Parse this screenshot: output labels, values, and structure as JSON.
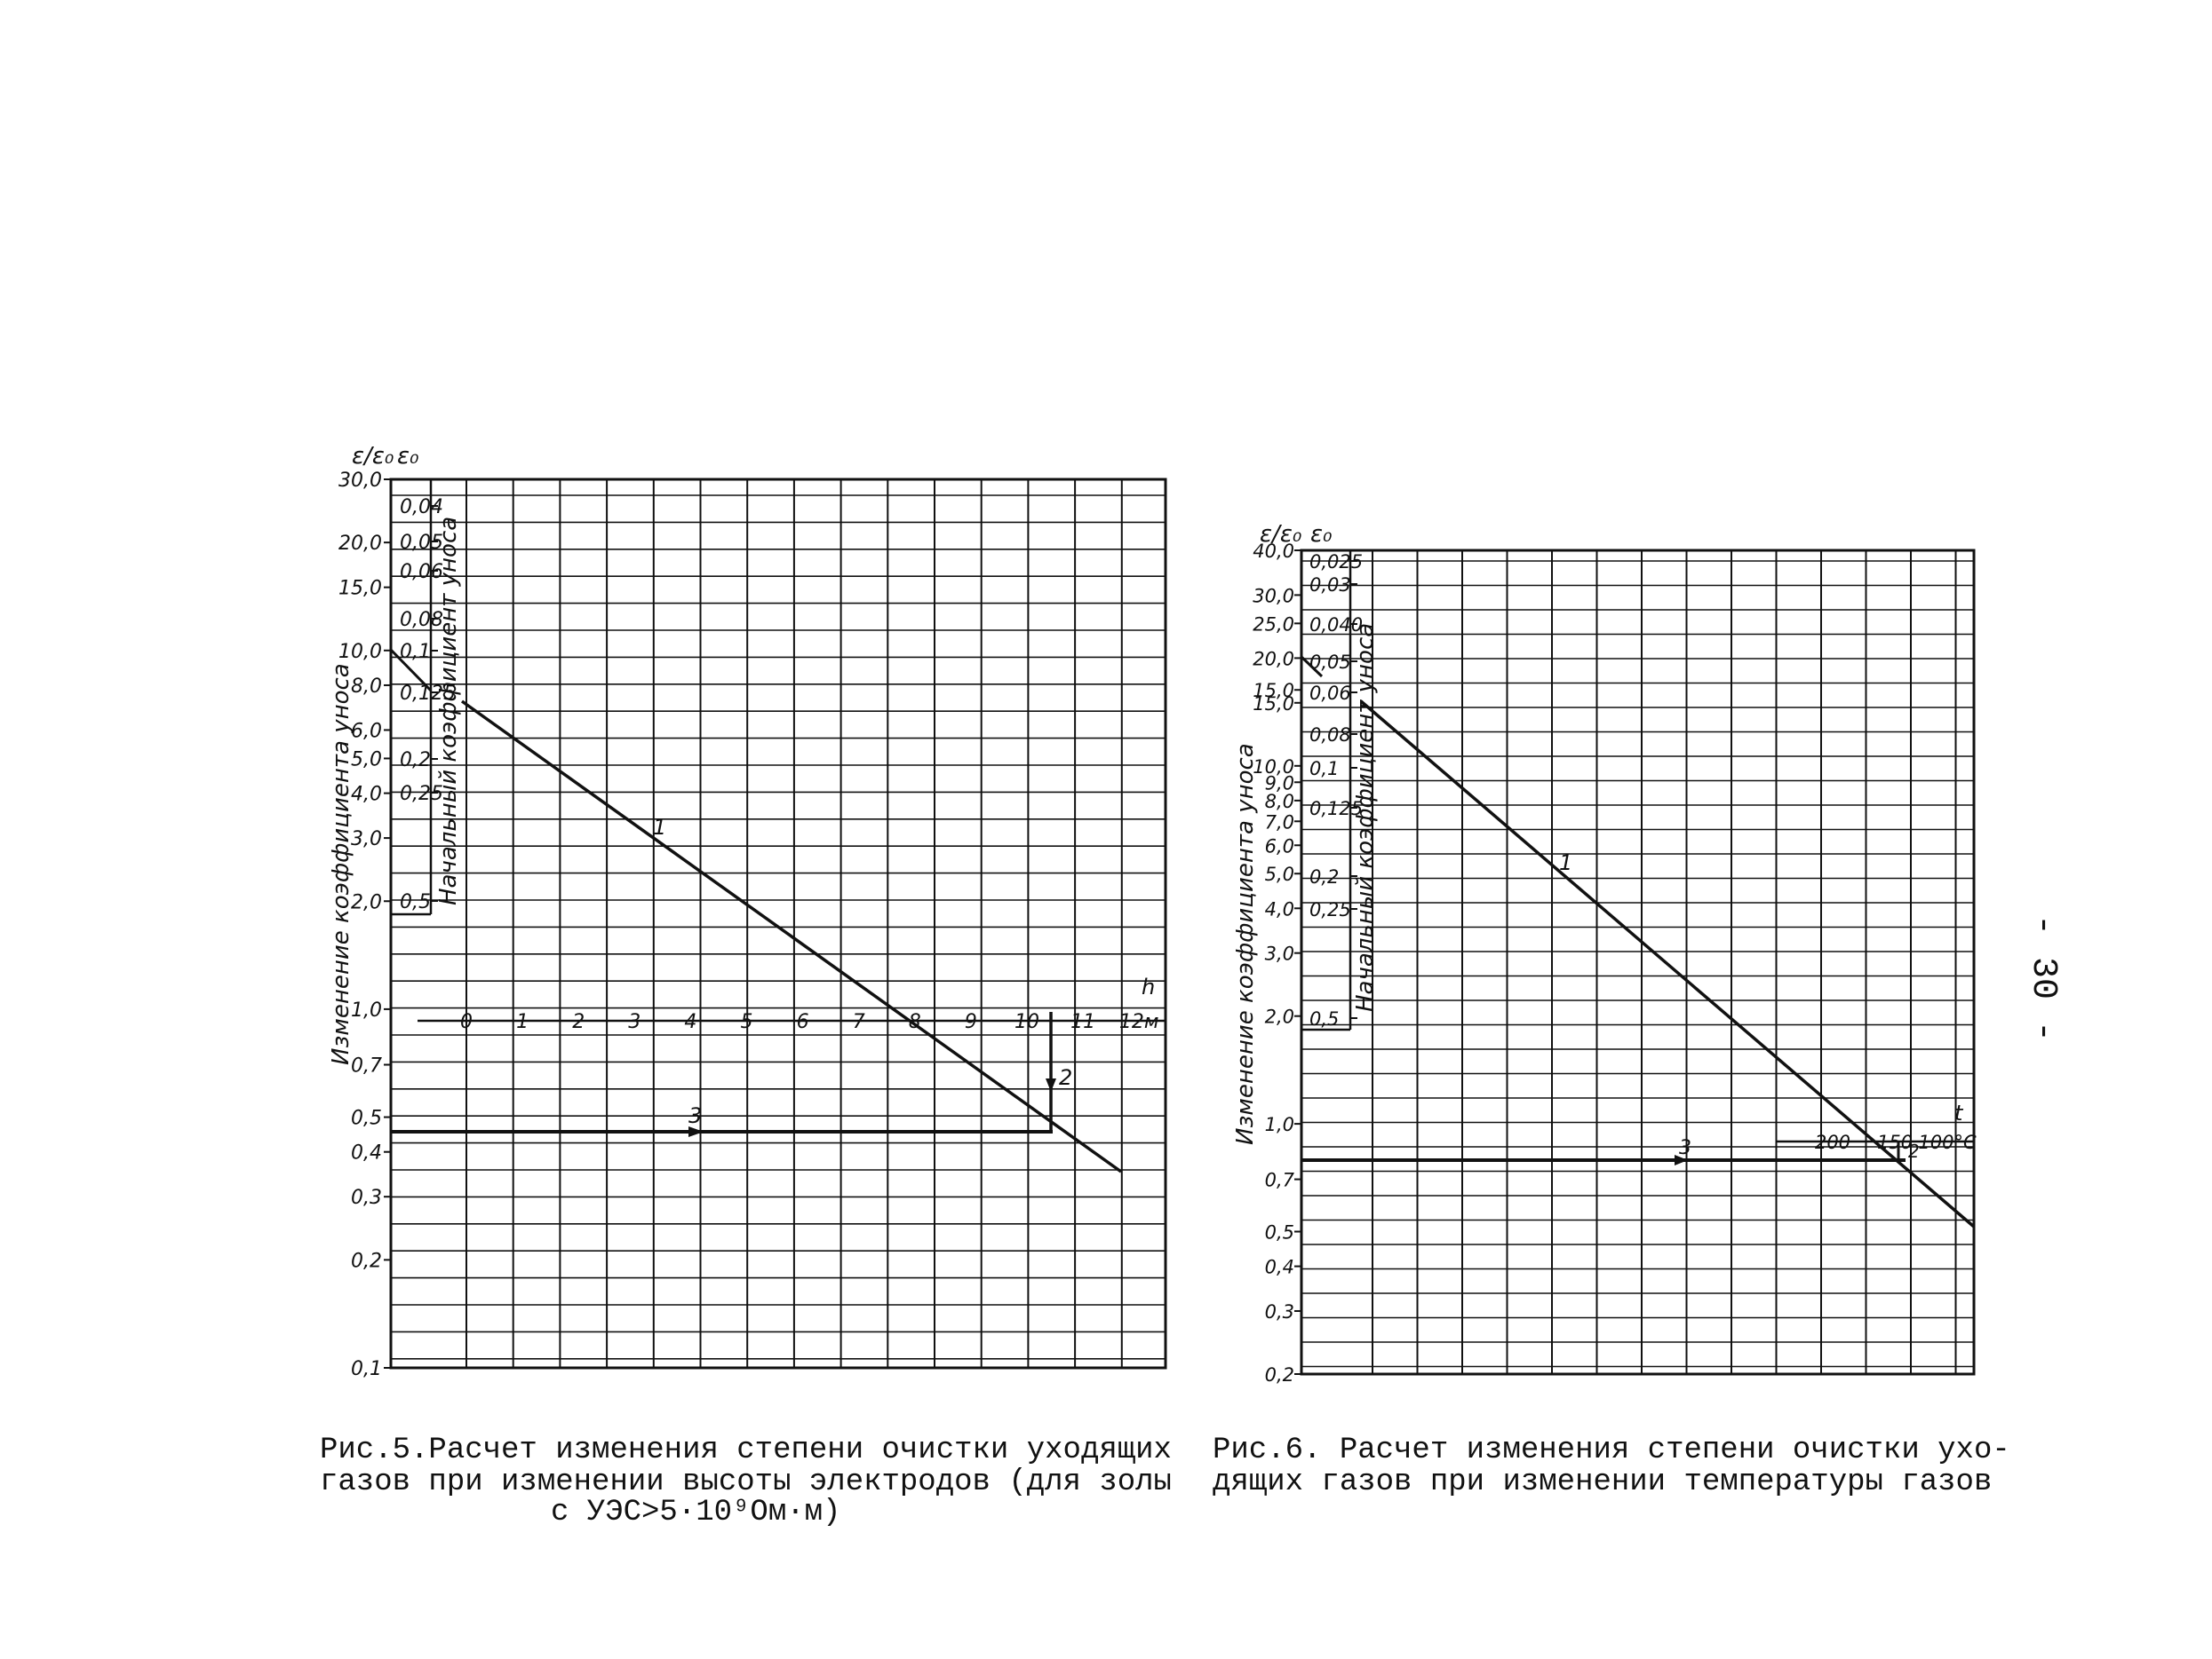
{
  "page_number": "- 30 -",
  "chart_data": [
    {
      "type": "line",
      "figure": "fig5",
      "title": "",
      "caption": [
        "Рис.5.Расчет изменения степени очистки уходящих",
        "газов при изменении высоты электродов (для золы",
        "с УЭС>5·10⁹Ом·м)"
      ],
      "left_axis_symbol": "ε/ε₀",
      "inner_axis_symbol": "ε₀",
      "ylabel": "Изменение коэффициента уноса",
      "inner_ylabel": "Начальный коэффициент уноса",
      "y_scale": "log",
      "ylim": [
        0.1,
        30.0
      ],
      "y_ticks": [
        "30,0",
        "20,0",
        "15,0",
        "10,0",
        "8,0",
        "6,0",
        "5,0",
        "4,0",
        "3,0",
        "2,0",
        "1,0",
        "0,7",
        "0,5",
        "0,4",
        "0,3",
        "0,2",
        "0,1"
      ],
      "inner_ticks": [
        "0,04",
        "0,05",
        "0,06",
        "0,08",
        "0,1",
        "0,125",
        "0,2",
        "0,25",
        "0,5"
      ],
      "h_axis_label": "h",
      "h_ticks": [
        "0",
        "1",
        "2",
        "3",
        "4",
        "5",
        "6",
        "7",
        "8",
        "9",
        "10",
        "11",
        "12м"
      ],
      "line_labels": [
        "1",
        "2",
        "3"
      ]
    },
    {
      "type": "line",
      "figure": "fig6",
      "title": "",
      "caption": [
        "Рис.6. Расчет изменения степени очистки ухо-",
        "дящих газов при изменении температуры газов"
      ],
      "left_axis_symbol": "ε/ε₀",
      "inner_axis_symbol": "ε₀",
      "ylabel": "Изменение коэффициента уноса",
      "inner_ylabel": "Начальный коэффициент уноса",
      "y_scale": "log",
      "ylim": [
        0.2,
        40.0
      ],
      "y_ticks": [
        "40,0",
        "30,0",
        "25,0",
        "20,0",
        "15,0",
        "15,0",
        "10,0",
        "9,0",
        "8,0",
        "7,0",
        "6,0",
        "5,0",
        "4,0",
        "3,0",
        "2,0",
        "1,0",
        "0,7",
        "0,5",
        "0,4",
        "0,3",
        "0,2"
      ],
      "inner_ticks": [
        "0,025",
        "0,03",
        "0,040",
        "0,05",
        "0,06",
        "0,08",
        "0,1",
        "0,125",
        "0,2",
        "0,25",
        "0,5"
      ],
      "t_axis_label": "t",
      "t_ticks": [
        "200",
        "150",
        "100°C"
      ],
      "line_labels": [
        "1",
        "2",
        "3"
      ]
    }
  ]
}
